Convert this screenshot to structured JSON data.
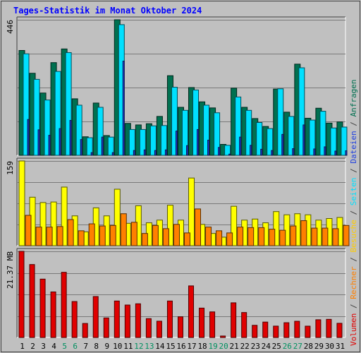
{
  "chart_data": {
    "type": "bar",
    "title": "Tages-Statistik im Monat Oktober 2024",
    "categories": [
      "1",
      "2",
      "3",
      "4",
      "5",
      "6",
      "7",
      "8",
      "9",
      "10",
      "11",
      "12",
      "13",
      "14",
      "15",
      "16",
      "17",
      "18",
      "19",
      "20",
      "21",
      "22",
      "23",
      "24",
      "25",
      "26",
      "27",
      "28",
      "29",
      "30",
      "31"
    ],
    "weekend_days": [
      "5",
      "6",
      "12",
      "13",
      "19",
      "20",
      "26",
      "27"
    ],
    "panels": [
      {
        "id": "top",
        "ymax_label": "446",
        "ymax": 446,
        "series": [
          {
            "name": "Anfragen",
            "color": "#007050",
            "values": [
              345,
              270,
              205,
              305,
              350,
              186,
              61,
              172,
              65,
              446,
              105,
              100,
              104,
              128,
              262,
              158,
              223,
              176,
              156,
              36,
              221,
              158,
              121,
              95,
              218,
              142,
              300,
              122,
              155,
              106,
              110
            ]
          },
          {
            "name": "Dateien",
            "color": "#00e0ff",
            "values": [
              334,
              250,
              182,
              276,
              338,
              165,
              58,
              158,
              60,
              430,
              85,
              85,
              97,
              98,
              224,
              148,
              215,
              165,
              140,
              33,
              192,
              148,
              108,
              88,
              219,
              128,
              288,
              116,
              145,
              90,
              93
            ]
          },
          {
            "name": "Seiten",
            "color": "#2040e0",
            "values": [
              118,
              84,
              66,
              88,
              115,
              52,
              9,
              60,
              9,
              310,
              16,
              18,
              16,
              18,
              80,
              32,
              85,
              50,
              26,
              4,
              60,
              33,
              20,
              16,
              69,
              22,
              100,
              21,
              28,
              14,
              15
            ]
          }
        ]
      },
      {
        "id": "middle",
        "ymax_label": "159",
        "ymax": 159,
        "series": [
          {
            "name": "Besuche",
            "color": "#ffff00",
            "values": [
              159,
              91,
              81,
              82,
              110,
              56,
              26,
              71,
              56,
              106,
              42,
              75,
              43,
              48,
              76,
              48,
              127,
              40,
              23,
              16,
              74,
              48,
              50,
              43,
              64,
              58,
              60,
              58,
              48,
              51,
              53
            ]
          },
          {
            "name": "Rechner",
            "color": "#ff8000",
            "values": [
              57,
              35,
              35,
              36,
              49,
              28,
              41,
              37,
              38,
              60,
              44,
              23,
              38,
              32,
              40,
              24,
              69,
              35,
              28,
              24,
              35,
              34,
              34,
              31,
              29,
              37,
              47,
              33,
              33,
              32,
              38
            ]
          }
        ]
      },
      {
        "id": "bottom",
        "ymax_label": "21.37 MB",
        "ymax": 21.37,
        "series": [
          {
            "name": "Volumen",
            "color": "#e00000",
            "values": [
              21.37,
              18.1,
              14.48,
              11.3,
              16.17,
              8.92,
              3.48,
              10.16,
              4.85,
              9.05,
              8.05,
              8.36,
              4.68,
              4.04,
              9.05,
              5.13,
              12.8,
              7.29,
              6.35,
              0.36,
              8.6,
              6.19,
              3.02,
              3.82,
              2.82,
              3.67,
              4.02,
              2.81,
              4.4,
              4.5,
              3.52
            ]
          }
        ]
      }
    ],
    "right_legend": [
      {
        "text": "Volumen",
        "color": "#e00000",
        "panel": "bottom"
      },
      {
        "text": " / ",
        "color": "#404040"
      },
      {
        "text": "Rechner",
        "color": "#ff8000",
        "panel": "bottom"
      },
      {
        "text": " / ",
        "color": "#404040"
      },
      {
        "text": "Besuche",
        "color": "#ffcc00",
        "panel": "middle"
      },
      {
        "text": " / ",
        "color": "#404040"
      },
      {
        "text": "Seiten",
        "color": "#00e0ff",
        "panel": "middle"
      },
      {
        "text": " / ",
        "color": "#404040"
      },
      {
        "text": "Dateien",
        "color": "#2040e0",
        "panel": "top"
      },
      {
        "text": " / ",
        "color": "#404040"
      },
      {
        "text": "Anfragen",
        "color": "#007050",
        "panel": "top"
      }
    ],
    "colors": {
      "background": "#c0c0c0",
      "title": "#0000ff",
      "grid": "#7a7a7a",
      "weekday_label": "#000000",
      "weekend_label": "#009060"
    }
  }
}
